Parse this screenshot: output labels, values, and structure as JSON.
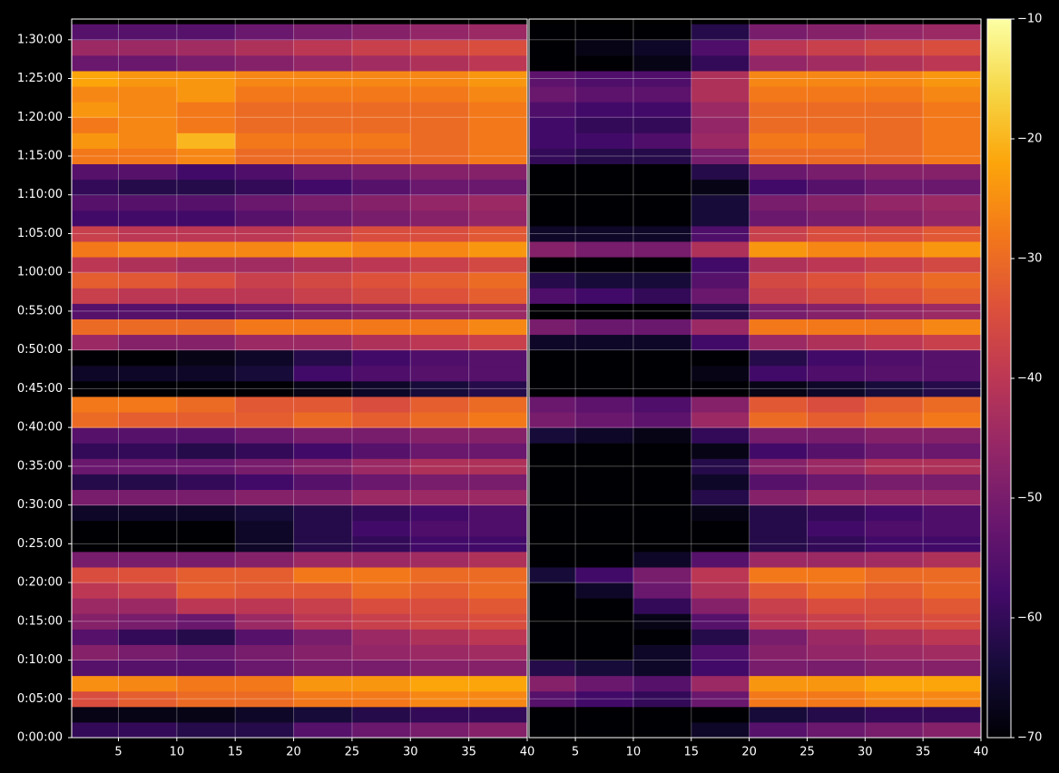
{
  "chart_data": {
    "type": "heatmap",
    "ylim": [
      0,
      5560
    ],
    "yticks": [
      {
        "value": 0,
        "label": "0:00:00"
      },
      {
        "value": 300,
        "label": "0:05:00"
      },
      {
        "value": 600,
        "label": "0:10:00"
      },
      {
        "value": 900,
        "label": "0:15:00"
      },
      {
        "value": 1200,
        "label": "0:20:00"
      },
      {
        "value": 1500,
        "label": "0:25:00"
      },
      {
        "value": 1800,
        "label": "0:30:00"
      },
      {
        "value": 2100,
        "label": "0:35:00"
      },
      {
        "value": 2400,
        "label": "0:40:00"
      },
      {
        "value": 2700,
        "label": "0:45:00"
      },
      {
        "value": 3000,
        "label": "0:50:00"
      },
      {
        "value": 3300,
        "label": "0:55:00"
      },
      {
        "value": 3600,
        "label": "1:00:00"
      },
      {
        "value": 3900,
        "label": "1:05:00"
      },
      {
        "value": 4200,
        "label": "1:10:00"
      },
      {
        "value": 4500,
        "label": "1:15:00"
      },
      {
        "value": 4800,
        "label": "1:20:00"
      },
      {
        "value": 5100,
        "label": "1:25:00"
      },
      {
        "value": 5400,
        "label": "1:30:00"
      }
    ],
    "y_edges": [
      0,
      120,
      240,
      360,
      480,
      600,
      720,
      840,
      960,
      1080,
      1200,
      1320,
      1440,
      1560,
      1680,
      1800,
      1920,
      2040,
      2160,
      2280,
      2400,
      2520,
      2640,
      2760,
      2880,
      3000,
      3120,
      3240,
      3360,
      3480,
      3600,
      3720,
      3840,
      3960,
      4080,
      4200,
      4320,
      4440,
      4560,
      4680,
      4800,
      4920,
      5040,
      5160,
      5280,
      5400,
      5520
    ],
    "clim": [
      -70,
      -10
    ],
    "cticks": [
      {
        "value": -70,
        "label": "−70"
      },
      {
        "value": -60,
        "label": "−60"
      },
      {
        "value": -50,
        "label": "−50"
      },
      {
        "value": -40,
        "label": "−40"
      },
      {
        "value": -30,
        "label": "−30"
      },
      {
        "value": -20,
        "label": "−20"
      },
      {
        "value": -10,
        "label": "−10"
      }
    ],
    "colormap": "inferno",
    "grid": true,
    "panels": [
      {
        "xlim": [
          1,
          40
        ],
        "xticks": [
          5,
          10,
          15,
          20,
          25,
          30,
          35,
          40
        ],
        "x_edges": [
          1,
          5,
          10,
          15,
          20,
          25,
          30,
          35,
          40
        ],
        "z": [
          [
            -60,
            -60,
            -62,
            -62,
            -55,
            -52,
            -50,
            -48
          ],
          [
            -68,
            -68,
            -68,
            -66,
            -64,
            -62,
            -60,
            -60
          ],
          [
            -35,
            -32,
            -30,
            -30,
            -28,
            -28,
            -26,
            -26
          ],
          [
            -25,
            -26,
            -28,
            -28,
            -24,
            -24,
            -22,
            -22
          ],
          [
            -55,
            -55,
            -55,
            -52,
            -50,
            -50,
            -48,
            -48
          ],
          [
            -48,
            -50,
            -52,
            -50,
            -48,
            -46,
            -45,
            -44
          ],
          [
            -55,
            -60,
            -62,
            -55,
            -50,
            -45,
            -42,
            -40
          ],
          [
            -48,
            -50,
            -52,
            -45,
            -40,
            -38,
            -36,
            -35
          ],
          [
            -45,
            -45,
            -40,
            -40,
            -38,
            -35,
            -35,
            -33
          ],
          [
            -40,
            -38,
            -32,
            -33,
            -33,
            -30,
            -32,
            -30
          ],
          [
            -35,
            -34,
            -32,
            -32,
            -28,
            -28,
            -30,
            -30
          ],
          [
            -50,
            -50,
            -50,
            -48,
            -45,
            -45,
            -44,
            -42
          ],
          [
            -70,
            -70,
            -70,
            -66,
            -62,
            -60,
            -58,
            -58
          ],
          [
            -70,
            -70,
            -70,
            -66,
            -62,
            -58,
            -56,
            -56
          ],
          [
            -66,
            -66,
            -66,
            -64,
            -62,
            -60,
            -58,
            -56
          ],
          [
            -50,
            -50,
            -50,
            -48,
            -48,
            -45,
            -45,
            -45
          ],
          [
            -62,
            -62,
            -60,
            -58,
            -55,
            -52,
            -50,
            -50
          ],
          [
            -52,
            -52,
            -52,
            -50,
            -48,
            -45,
            -42,
            -42
          ],
          [
            -60,
            -60,
            -62,
            -60,
            -58,
            -55,
            -52,
            -52
          ],
          [
            -55,
            -55,
            -55,
            -52,
            -50,
            -50,
            -48,
            -48
          ],
          [
            -30,
            -32,
            -32,
            -32,
            -30,
            -32,
            -30,
            -28
          ],
          [
            -28,
            -28,
            -30,
            -33,
            -33,
            -35,
            -32,
            -30
          ],
          [
            -70,
            -70,
            -70,
            -70,
            -68,
            -66,
            -64,
            -62
          ],
          [
            -66,
            -66,
            -66,
            -64,
            -58,
            -56,
            -55,
            -55
          ],
          [
            -70,
            -70,
            -68,
            -66,
            -62,
            -58,
            -56,
            -55
          ],
          [
            -45,
            -48,
            -48,
            -45,
            -45,
            -42,
            -40,
            -38
          ],
          [
            -30,
            -30,
            -30,
            -28,
            -28,
            -28,
            -28,
            -26
          ],
          [
            -55,
            -55,
            -55,
            -52,
            -50,
            -48,
            -46,
            -45
          ],
          [
            -38,
            -40,
            -40,
            -40,
            -38,
            -36,
            -34,
            -32
          ],
          [
            -32,
            -33,
            -35,
            -38,
            -36,
            -34,
            -32,
            -30
          ],
          [
            -40,
            -42,
            -44,
            -44,
            -42,
            -40,
            -38,
            -36
          ],
          [
            -28,
            -26,
            -26,
            -26,
            -24,
            -26,
            -26,
            -24
          ],
          [
            -38,
            -40,
            -40,
            -40,
            -38,
            -35,
            -35,
            -33
          ],
          [
            -58,
            -58,
            -58,
            -55,
            -52,
            -50,
            -48,
            -46
          ],
          [
            -55,
            -55,
            -55,
            -52,
            -50,
            -48,
            -46,
            -45
          ],
          [
            -60,
            -62,
            -62,
            -60,
            -58,
            -55,
            -52,
            -52
          ],
          [
            -55,
            -55,
            -58,
            -56,
            -52,
            -50,
            -48,
            -48
          ],
          [
            -28,
            -28,
            -26,
            -30,
            -30,
            -30,
            -30,
            -28
          ],
          [
            -24,
            -26,
            -20,
            -28,
            -28,
            -28,
            -30,
            -28
          ],
          [
            -28,
            -26,
            -28,
            -30,
            -30,
            -30,
            -30,
            -28
          ],
          [
            -24,
            -26,
            -28,
            -30,
            -30,
            -30,
            -30,
            -28
          ],
          [
            -26,
            -26,
            -24,
            -28,
            -28,
            -28,
            -28,
            -26
          ],
          [
            -22,
            -24,
            -24,
            -26,
            -26,
            -26,
            -26,
            -24
          ],
          [
            -52,
            -52,
            -50,
            -48,
            -46,
            -44,
            -42,
            -40
          ],
          [
            -45,
            -45,
            -44,
            -42,
            -40,
            -38,
            -36,
            -35
          ],
          [
            -55,
            -55,
            -55,
            -52,
            -50,
            -48,
            -46,
            -45
          ]
        ]
      },
      {
        "xlim": [
          1,
          40
        ],
        "xticks": [
          5,
          10,
          15,
          20,
          25,
          30,
          35,
          40
        ],
        "x_edges": [
          1,
          5,
          10,
          15,
          20,
          25,
          30,
          35,
          40
        ],
        "z": [
          [
            -70,
            -70,
            -70,
            -66,
            -55,
            -52,
            -50,
            -48
          ],
          [
            -70,
            -70,
            -70,
            -70,
            -64,
            -62,
            -60,
            -60
          ],
          [
            -55,
            -58,
            -60,
            -52,
            -28,
            -28,
            -26,
            -26
          ],
          [
            -48,
            -52,
            -55,
            -45,
            -24,
            -24,
            -22,
            -22
          ],
          [
            -62,
            -64,
            -66,
            -58,
            -50,
            -50,
            -48,
            -48
          ],
          [
            -70,
            -70,
            -66,
            -56,
            -48,
            -46,
            -45,
            -44
          ],
          [
            -70,
            -70,
            -70,
            -62,
            -50,
            -45,
            -42,
            -40
          ],
          [
            -70,
            -70,
            -68,
            -55,
            -40,
            -38,
            -36,
            -35
          ],
          [
            -70,
            -70,
            -60,
            -48,
            -38,
            -35,
            -35,
            -33
          ],
          [
            -70,
            -66,
            -52,
            -42,
            -33,
            -30,
            -32,
            -30
          ],
          [
            -64,
            -58,
            -50,
            -40,
            -28,
            -28,
            -30,
            -30
          ],
          [
            -70,
            -70,
            -66,
            -55,
            -45,
            -45,
            -44,
            -42
          ],
          [
            -70,
            -70,
            -70,
            -70,
            -62,
            -60,
            -58,
            -58
          ],
          [
            -70,
            -70,
            -70,
            -70,
            -62,
            -58,
            -56,
            -56
          ],
          [
            -70,
            -70,
            -70,
            -68,
            -62,
            -60,
            -58,
            -56
          ],
          [
            -70,
            -70,
            -70,
            -62,
            -48,
            -45,
            -45,
            -45
          ],
          [
            -70,
            -70,
            -70,
            -66,
            -55,
            -52,
            -50,
            -50
          ],
          [
            -70,
            -70,
            -70,
            -62,
            -48,
            -45,
            -42,
            -42
          ],
          [
            -70,
            -70,
            -70,
            -68,
            -58,
            -55,
            -52,
            -52
          ],
          [
            -64,
            -66,
            -68,
            -60,
            -50,
            -50,
            -48,
            -48
          ],
          [
            -50,
            -52,
            -54,
            -45,
            -30,
            -32,
            -30,
            -28
          ],
          [
            -52,
            -54,
            -56,
            -48,
            -33,
            -35,
            -32,
            -30
          ],
          [
            -70,
            -70,
            -70,
            -70,
            -68,
            -66,
            -64,
            -62
          ],
          [
            -70,
            -70,
            -70,
            -68,
            -58,
            -56,
            -55,
            -55
          ],
          [
            -70,
            -70,
            -70,
            -70,
            -62,
            -58,
            -56,
            -55
          ],
          [
            -66,
            -66,
            -66,
            -58,
            -45,
            -42,
            -40,
            -38
          ],
          [
            -50,
            -52,
            -52,
            -45,
            -28,
            -28,
            -28,
            -26
          ],
          [
            -70,
            -70,
            -70,
            -62,
            -50,
            -48,
            -46,
            -45
          ],
          [
            -56,
            -58,
            -60,
            -52,
            -38,
            -36,
            -34,
            -32
          ],
          [
            -62,
            -64,
            -64,
            -55,
            -36,
            -34,
            -32,
            -30
          ],
          [
            -70,
            -70,
            -70,
            -58,
            -42,
            -40,
            -38,
            -36
          ],
          [
            -48,
            -50,
            -50,
            -42,
            -24,
            -26,
            -26,
            -24
          ],
          [
            -66,
            -66,
            -66,
            -56,
            -38,
            -35,
            -35,
            -33
          ],
          [
            -70,
            -70,
            -70,
            -64,
            -52,
            -50,
            -48,
            -46
          ],
          [
            -70,
            -70,
            -70,
            -64,
            -50,
            -48,
            -46,
            -45
          ],
          [
            -70,
            -70,
            -70,
            -68,
            -58,
            -55,
            -52,
            -52
          ],
          [
            -70,
            -70,
            -70,
            -62,
            -52,
            -50,
            -48,
            -48
          ],
          [
            -60,
            -62,
            -62,
            -50,
            -30,
            -30,
            -30,
            -28
          ],
          [
            -58,
            -58,
            -56,
            -45,
            -28,
            -28,
            -30,
            -28
          ],
          [
            -58,
            -60,
            -60,
            -46,
            -30,
            -30,
            -30,
            -28
          ],
          [
            -56,
            -58,
            -58,
            -45,
            -30,
            -30,
            -30,
            -28
          ],
          [
            -52,
            -54,
            -54,
            -42,
            -28,
            -28,
            -28,
            -26
          ],
          [
            -54,
            -56,
            -56,
            -42,
            -26,
            -26,
            -26,
            -24
          ],
          [
            -70,
            -70,
            -68,
            -60,
            -46,
            -44,
            -42,
            -40
          ],
          [
            -70,
            -68,
            -66,
            -56,
            -40,
            -38,
            -36,
            -35
          ],
          [
            -70,
            -70,
            -70,
            -62,
            -50,
            -48,
            -46,
            -45
          ]
        ]
      }
    ]
  }
}
